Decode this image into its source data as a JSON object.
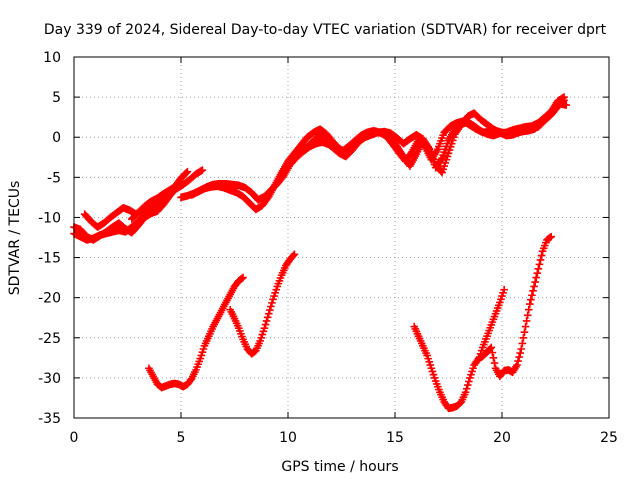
{
  "chart_data": {
    "type": "scatter",
    "title": "Day 339 of 2024, Sidereal Day-to-day VTEC variation (SDTVAR) for receiver dprt",
    "xlabel": "GPS time / hours",
    "ylabel": "SDTVAR / TECUs",
    "xlim": [
      0,
      25
    ],
    "ylim": [
      -35,
      10
    ],
    "x_ticks": [
      0,
      5,
      10,
      15,
      20,
      25
    ],
    "y_ticks": [
      -35,
      -30,
      -25,
      -20,
      -15,
      -10,
      -5,
      0,
      5,
      10
    ],
    "x_tick_labels": [
      "0",
      "5",
      "10",
      "15",
      "20",
      "25"
    ],
    "y_tick_labels": [
      "-35",
      "-30",
      "-25",
      "-20",
      "-15",
      "-10",
      "-5",
      "0",
      "5",
      "10"
    ],
    "grid": true,
    "marker": "plus",
    "color": "#ff0000",
    "series": [
      {
        "x": [
          0.0,
          0.3,
          0.6,
          0.9,
          1.2,
          1.5,
          1.8,
          2.1,
          2.4,
          2.7,
          3.0,
          3.3,
          3.6,
          3.9,
          4.2,
          4.5,
          4.8,
          5.0
        ],
        "y": [
          -11.2,
          -11.5,
          -12.4,
          -12.8,
          -12.3,
          -11.8,
          -11.2,
          -10.7,
          -11.4,
          -11.9,
          -11.0,
          -10.0,
          -9.5,
          -9.2,
          -8.3,
          -7.2,
          -6.3,
          -5.8
        ]
      },
      {
        "x": [
          0.5,
          0.8,
          1.1,
          1.4,
          1.7,
          2.0,
          2.3,
          2.6,
          2.9,
          3.2,
          3.5,
          3.8,
          4.1,
          4.4,
          4.7,
          5.0,
          5.3
        ],
        "y": [
          -9.6,
          -10.5,
          -11.2,
          -10.7,
          -10.0,
          -9.4,
          -8.8,
          -9.1,
          -9.6,
          -9.0,
          -8.2,
          -7.8,
          -7.2,
          -6.7,
          -6.2,
          -5.1,
          -4.3
        ]
      },
      {
        "x": [
          0.0,
          0.3,
          0.6,
          0.9,
          1.2,
          1.5,
          1.8,
          2.1,
          2.4,
          2.7,
          3.0,
          3.3,
          3.6,
          3.9,
          4.2,
          4.5,
          4.8
        ],
        "y": [
          -12.0,
          -12.4,
          -12.8,
          -12.6,
          -12.2,
          -12.0,
          -11.8,
          -11.6,
          -11.8,
          -11.2,
          -10.5,
          -9.6,
          -8.8,
          -8.2,
          -7.4,
          -6.6,
          -6.0
        ]
      },
      {
        "x": [
          2.7,
          3.0,
          3.3,
          3.6,
          3.9,
          4.2,
          4.5,
          4.8,
          5.1,
          5.4,
          5.7,
          6.0
        ],
        "y": [
          -10.2,
          -9.4,
          -8.6,
          -8.0,
          -7.6,
          -7.2,
          -6.8,
          -6.4,
          -5.9,
          -5.3,
          -4.6,
          -4.1
        ]
      },
      {
        "x": [
          5.0,
          5.3,
          5.6,
          5.9,
          6.2,
          6.5,
          6.8,
          7.1,
          7.4,
          7.7,
          8.0,
          8.3,
          8.6,
          8.9,
          9.2,
          9.5,
          9.8,
          10.1,
          10.4,
          10.7,
          11.0,
          11.3,
          11.6,
          11.9,
          12.2,
          12.5,
          12.8,
          13.1,
          13.4,
          13.7,
          14.0,
          14.3,
          14.6,
          14.9,
          15.2,
          15.5,
          15.8,
          16.1,
          16.4,
          16.7,
          17.0,
          17.3,
          17.6,
          17.9,
          18.2,
          18.5,
          18.8,
          19.1,
          19.4,
          19.7,
          20.0,
          20.3,
          20.6,
          20.9,
          21.2,
          21.5,
          21.8,
          22.1,
          22.4,
          22.7,
          23.0
        ],
        "y": [
          -7.5,
          -7.3,
          -7.0,
          -6.6,
          -6.2,
          -5.9,
          -5.8,
          -5.8,
          -5.9,
          -6.0,
          -6.3,
          -6.9,
          -7.8,
          -7.4,
          -6.6,
          -5.8,
          -4.8,
          -3.4,
          -2.5,
          -1.8,
          -1.2,
          -0.8,
          -0.6,
          -0.9,
          -1.5,
          -1.8,
          -1.2,
          -0.5,
          0.2,
          0.6,
          0.8,
          0.6,
          0.1,
          -0.9,
          -2.0,
          -3.0,
          -1.8,
          -0.3,
          -1.2,
          -2.8,
          -1.5,
          0.6,
          1.4,
          1.8,
          2.0,
          1.5,
          1.0,
          0.6,
          0.7,
          0.8,
          0.6,
          0.4,
          0.5,
          0.7,
          0.8,
          1.0,
          1.6,
          2.4,
          3.5,
          4.2,
          4.0
        ]
      },
      {
        "x": [
          5.5,
          5.8,
          6.1,
          6.4,
          6.7,
          7.0,
          7.3,
          7.6,
          7.9,
          8.2,
          8.5,
          8.8,
          9.1,
          9.4,
          9.7,
          10.0,
          10.3,
          10.6,
          10.9,
          11.2,
          11.5,
          11.8,
          12.1,
          12.4,
          12.7,
          13.0,
          13.3,
          13.6,
          13.9,
          14.2,
          14.5,
          14.8,
          15.1,
          15.4,
          15.7,
          16.0,
          16.3,
          16.6,
          16.9,
          17.2,
          17.5,
          17.8,
          18.1,
          18.4,
          18.7,
          19.0,
          19.3,
          19.6,
          19.9,
          20.2,
          20.5,
          20.8,
          21.1,
          21.4,
          21.7,
          22.0,
          22.3,
          22.6,
          22.9
        ],
        "y": [
          -7.2,
          -6.8,
          -6.4,
          -6.2,
          -6.1,
          -6.3,
          -6.6,
          -6.9,
          -7.4,
          -8.2,
          -9.0,
          -8.5,
          -7.4,
          -5.9,
          -4.4,
          -3.0,
          -2.0,
          -1.0,
          0.0,
          0.6,
          1.0,
          0.4,
          -0.6,
          -1.4,
          -1.9,
          -1.4,
          -0.6,
          0.1,
          0.5,
          0.6,
          0.4,
          0.0,
          -1.2,
          -2.4,
          -3.6,
          -2.1,
          -0.4,
          -1.5,
          -3.8,
          -2.6,
          -0.4,
          1.0,
          1.6,
          1.9,
          1.4,
          0.8,
          0.4,
          0.2,
          0.5,
          0.6,
          0.9,
          1.1,
          1.3,
          1.4,
          1.8,
          2.5,
          3.2,
          4.5,
          5.0
        ]
      },
      {
        "x": [
          10.0,
          10.3,
          10.6,
          10.9,
          11.2,
          11.5,
          11.8,
          12.1,
          12.4,
          12.7,
          13.0,
          13.3,
          13.6,
          13.9,
          14.2,
          14.5,
          14.8,
          15.1,
          15.4,
          15.7,
          16.0,
          16.3,
          16.6,
          16.9,
          17.2,
          17.5,
          17.8,
          18.1,
          18.4,
          18.7,
          19.0,
          19.3,
          19.6,
          19.9,
          20.2,
          20.5,
          20.8,
          21.1,
          21.4,
          21.7,
          22.0,
          22.3,
          22.6,
          22.9
        ],
        "y": [
          -3.5,
          -2.6,
          -1.8,
          -1.2,
          -0.4,
          0.2,
          -0.4,
          -1.3,
          -2.0,
          -2.4,
          -1.6,
          -0.6,
          0.0,
          0.3,
          0.6,
          0.7,
          0.5,
          -0.1,
          -0.8,
          -0.2,
          0.3,
          -0.2,
          -1.4,
          -3.4,
          -4.4,
          -2.0,
          0.4,
          1.6,
          2.6,
          3.0,
          2.2,
          1.6,
          1.0,
          0.6,
          0.2,
          0.3,
          0.6,
          0.8,
          1.0,
          1.3,
          2.1,
          2.8,
          3.8,
          4.6
        ]
      },
      {
        "x": [
          3.5,
          3.7,
          3.9,
          4.1,
          4.3,
          4.5,
          4.7,
          4.9,
          5.1,
          5.3,
          5.5,
          5.7,
          5.9,
          6.1,
          6.3,
          6.5,
          6.7,
          6.9,
          7.1,
          7.3,
          7.5,
          7.7,
          7.9
        ],
        "y": [
          -28.8,
          -29.8,
          -30.8,
          -31.2,
          -31.0,
          -30.8,
          -30.7,
          -30.8,
          -31.1,
          -30.8,
          -30.1,
          -29.0,
          -27.6,
          -26.0,
          -24.8,
          -23.6,
          -22.6,
          -21.6,
          -20.6,
          -19.6,
          -18.6,
          -17.9,
          -17.5
        ]
      },
      {
        "x": [
          7.3,
          7.5,
          7.7,
          7.9,
          8.1,
          8.3,
          8.5,
          8.7,
          8.9,
          9.1,
          9.3,
          9.5,
          9.7,
          9.9,
          10.1,
          10.3
        ],
        "y": [
          -21.5,
          -22.6,
          -23.8,
          -25.2,
          -26.4,
          -27.0,
          -26.6,
          -25.4,
          -23.8,
          -22.0,
          -20.2,
          -18.6,
          -17.2,
          -16.0,
          -15.2,
          -14.6
        ]
      },
      {
        "x": [
          15.9,
          16.1,
          16.3,
          16.5,
          16.7,
          16.9,
          17.1,
          17.3,
          17.5,
          17.7,
          17.9,
          18.1,
          18.3,
          18.5,
          18.7,
          18.9,
          19.1,
          19.3,
          19.5,
          19.7,
          19.9,
          20.1,
          20.3,
          20.5,
          20.7,
          20.9,
          21.1,
          21.3,
          21.5,
          21.7,
          21.9,
          22.1,
          22.3
        ],
        "y": [
          -23.6,
          -24.8,
          -26.0,
          -27.2,
          -28.8,
          -30.4,
          -31.8,
          -33.0,
          -33.8,
          -33.7,
          -33.5,
          -33.0,
          -31.8,
          -30.0,
          -28.4,
          -27.6,
          -27.3,
          -26.8,
          -26.2,
          -28.8,
          -29.8,
          -29.1,
          -29.0,
          -29.3,
          -28.4,
          -26.4,
          -23.6,
          -20.8,
          -18.6,
          -16.4,
          -14.2,
          -12.8,
          -12.4
        ]
      },
      {
        "x": [
          18.9,
          19.1,
          19.3,
          19.5,
          19.7,
          19.9,
          20.1
        ],
        "y": [
          -27.8,
          -26.2,
          -24.8,
          -23.4,
          -22.0,
          -20.6,
          -19.0
        ]
      }
    ]
  }
}
